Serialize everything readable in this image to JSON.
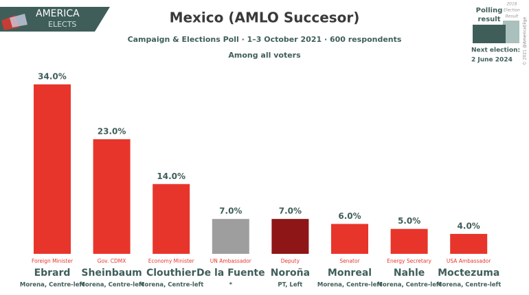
{
  "chart_data": {
    "type": "bar",
    "title": "Mexico (AMLO Succesor)",
    "subtitle": "Campaign & Elections Poll · 1–3 October 2021 · 600 respondents",
    "note": "Among all voters",
    "logo": [
      "AMERICA",
      "ELECTS"
    ],
    "legend_label": [
      "Polling",
      "result"
    ],
    "legend_previous": [
      "2018",
      "Election",
      "Result"
    ],
    "next_election_label": "Next election:",
    "next_election_date": "2 June 2024",
    "copyright": "© 2021 @AmericaElige",
    "categories": [
      "Ebrard",
      "Sheinbaum",
      "Clouthier",
      "De la Fuente",
      "Noroña",
      "Monreal",
      "Nahle",
      "Moctezuma"
    ],
    "roles": [
      "Foreign Minister",
      "Gov. CDMX",
      "Economy Minister",
      "UN Ambassador",
      "Deputy",
      "Senator",
      "Energy Secretary",
      "USA Ambassador"
    ],
    "parties": [
      "Morena, Centre-left",
      "Morena, Centre-left",
      "Morena, Centre-left",
      "*",
      "PT, Left",
      "Morena, Centre-left",
      "Morena, Centre-left",
      "Morena, Centre-left"
    ],
    "values": [
      34,
      23,
      14,
      7,
      7,
      6,
      5,
      4
    ],
    "value_labels": [
      "34.0%",
      "23.0%",
      "14.0%",
      "7.0%",
      "7.0%",
      "6.0%",
      "5.0%",
      "4.0%"
    ],
    "colors": [
      "#e8352b",
      "#e8352b",
      "#e8352b",
      "#9e9e9e",
      "#8e1616",
      "#e8352b",
      "#e8352b",
      "#e8352b"
    ]
  }
}
